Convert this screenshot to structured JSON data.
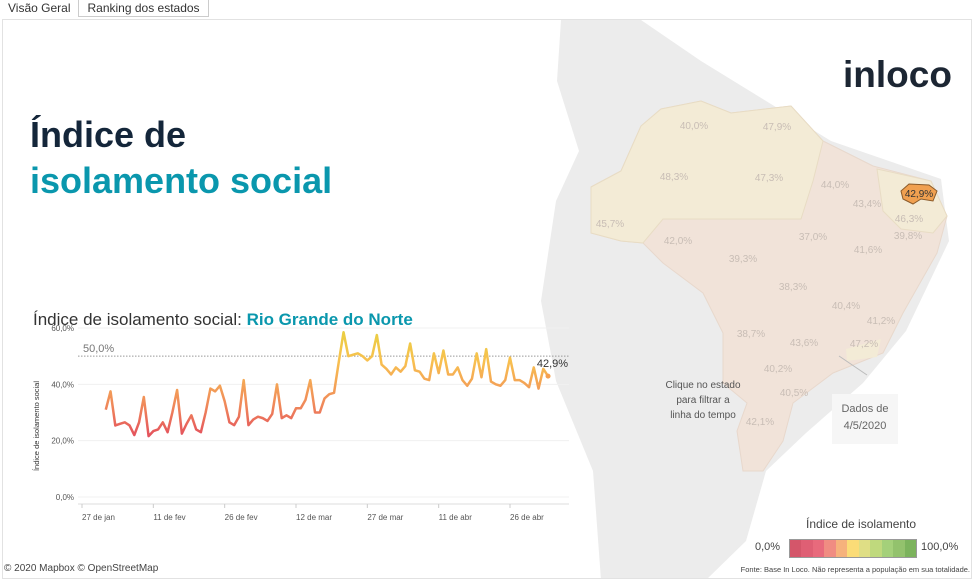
{
  "tabs": [
    {
      "label": "Visão Geral"
    },
    {
      "label": "Ranking dos estados"
    }
  ],
  "header": {
    "title_line1": "Índice de",
    "title_line2": "isolamento social",
    "logo": "inloco"
  },
  "chart_header": {
    "prefix": "Índice de isolamento social: ",
    "state": "Rio Grande do Norte"
  },
  "chart_data": {
    "type": "line",
    "ylabel": "Índice de isolamento social",
    "ylim": [
      0,
      60
    ],
    "y_ticks": [
      "0,0%",
      "20,0%",
      "40,0%",
      "60,0%"
    ],
    "x_ticks": [
      "27 de jan",
      "11 de fev",
      "26 de fev",
      "12 de mar",
      "27 de mar",
      "11 de abr",
      "26 de abr"
    ],
    "x_start": "2020-02-01",
    "x_end": "2020-05-04",
    "reference_line": {
      "value": 50,
      "label": "50,0%"
    },
    "last_label": "42,9%",
    "grid": true,
    "values": [
      31,
      37.5,
      25.4,
      26,
      26.5,
      25.4,
      22,
      26.5,
      35.5,
      21.6,
      23.4,
      24,
      26.5,
      23,
      30,
      38,
      22.5,
      26,
      29,
      24,
      23,
      30,
      38.5,
      37.5,
      39.5,
      34,
      26.5,
      25.5,
      28.5,
      41.5,
      25.5,
      27.5,
      28.5,
      28,
      27,
      29.5,
      40,
      28,
      29,
      28,
      31.5,
      31.5,
      34.5,
      41.5,
      30,
      30,
      35,
      36.5,
      37,
      48,
      58.5,
      50,
      50.5,
      51,
      50,
      48.5,
      50,
      57.5,
      47,
      45.5,
      43.5,
      46,
      44.5,
      46.5,
      54.5,
      45,
      44.5,
      42,
      41.5,
      51,
      44,
      52,
      43.5,
      43.5,
      46,
      41.5,
      39.5,
      42,
      51,
      42.5,
      52.5,
      41,
      40,
      39.5,
      41.5,
      49.5,
      41.5,
      41.5,
      40.5,
      39,
      46,
      38.5,
      45.5,
      42.9
    ]
  },
  "map": {
    "state_labels": [
      "40,0%",
      "47,9%",
      "48,3%",
      "47,3%",
      "45,7%",
      "42,0%",
      "44,0%",
      "43,4%",
      "42,9%",
      "46,3%",
      "39,8%",
      "37,0%",
      "41,6%",
      "39,3%",
      "38,3%",
      "40,4%",
      "41,2%",
      "47,2%",
      "38,7%",
      "43,6%",
      "40,2%",
      "40,5%",
      "42,1%"
    ],
    "selected_state_label": "42,9%",
    "hint": [
      "Clique no estado",
      "para filtrar a",
      "linha do tempo"
    ],
    "date_box": [
      "Dados de",
      "4/5/2020"
    ],
    "selected_color": "#f0a050"
  },
  "legend": {
    "title": "Índice de isolamento",
    "min": "0,0%",
    "max": "100,0%",
    "colors": [
      "#d4566a",
      "#df5f74",
      "#e86a7c",
      "#f08c82",
      "#f6b27c",
      "#fbdc77",
      "#dfde85",
      "#bfd97d",
      "#a4d07a",
      "#93c26d",
      "#7cb35d"
    ]
  },
  "footer": {
    "attribution": "© 2020 Mapbox © OpenStreetMap",
    "source": "Fonte: Base In Loco. Não representa a população em sua totalidade."
  }
}
